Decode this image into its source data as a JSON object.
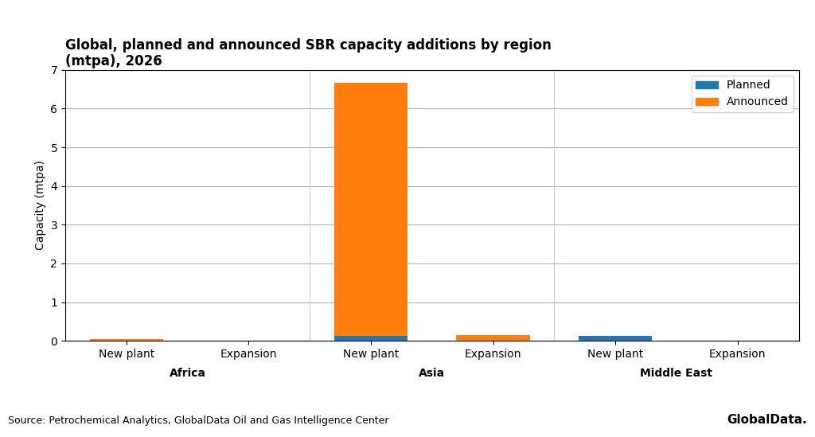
{
  "chart_data": {
    "type": "bar",
    "title": "Global, planned and announced SBR capacity additions by region\n(mtpa), 2026",
    "ylabel": "Capacity (mtpa)",
    "categories": [
      "New plant",
      "Expansion",
      "New plant",
      "Expansion",
      "New plant",
      "Expansion"
    ],
    "groups": [
      "Africa",
      "Asia",
      "Middle East"
    ],
    "series": [
      {
        "name": "Planned",
        "values": [
          0.0,
          0.0,
          0.12,
          0.0,
          0.12,
          0.0
        ]
      },
      {
        "name": "Announced",
        "values": [
          0.04,
          0.0,
          6.55,
          0.15,
          0.0,
          0.0
        ]
      }
    ],
    "stacked": true,
    "ylim": [
      0,
      7
    ],
    "yticks": [
      0,
      1,
      2,
      3,
      4,
      5,
      6,
      7
    ],
    "grid": true,
    "legend": "upper right",
    "source": "Source: Petrochemical Analytics, GlobalData Oil and Gas Intelligence Center",
    "annotations": [
      "GlobalData."
    ]
  }
}
